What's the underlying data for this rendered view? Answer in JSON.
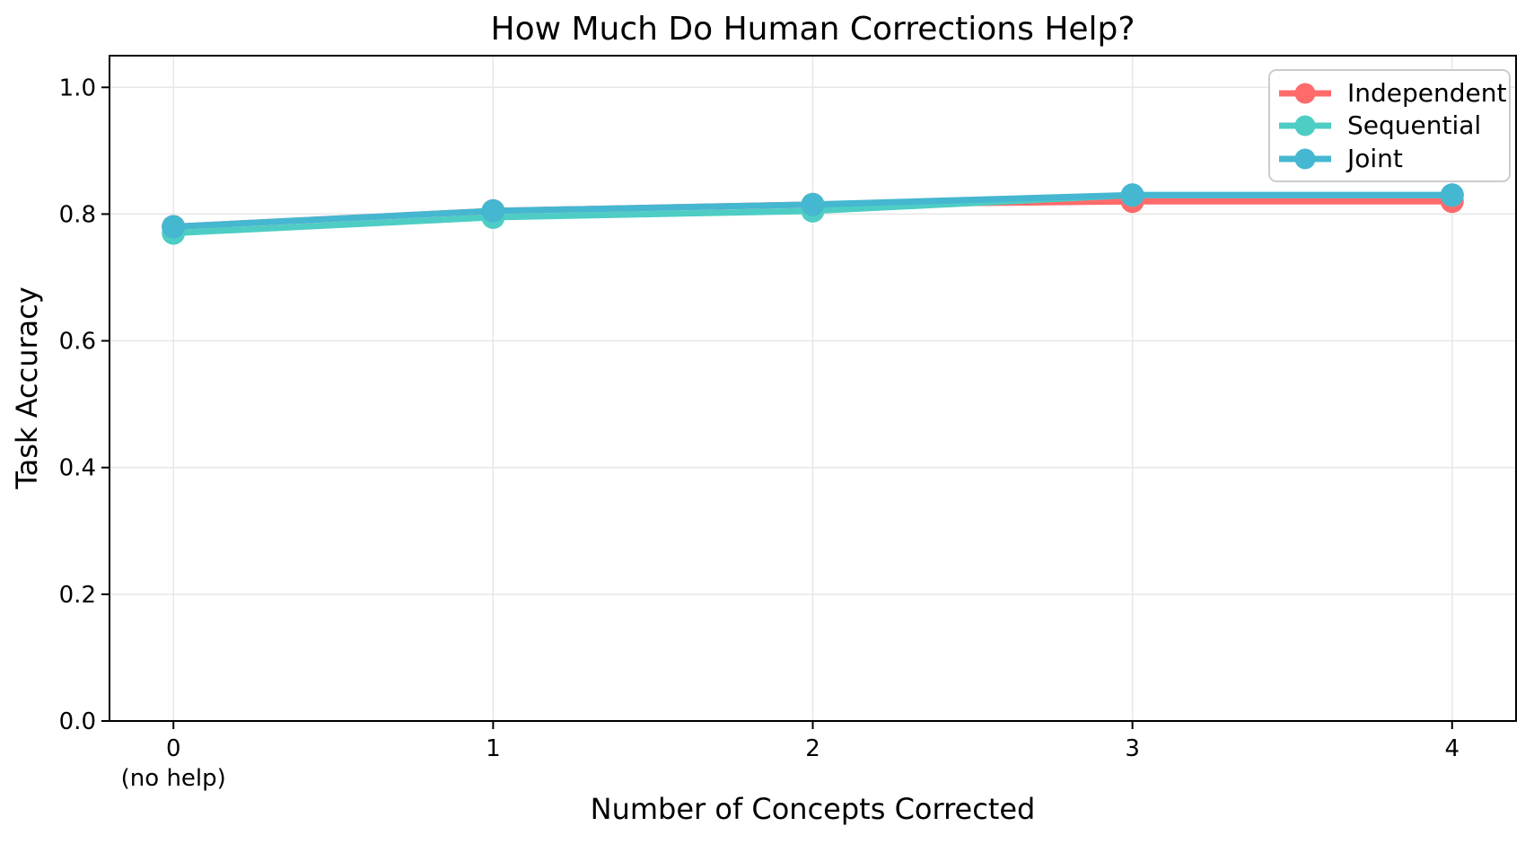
{
  "chart_data": {
    "type": "line",
    "title": "How Much Do Human Corrections Help?",
    "xlabel": "Number of Concepts Corrected",
    "ylabel": "Task Accuracy",
    "x": [
      0,
      1,
      2,
      3,
      4
    ],
    "x_tick_labels": [
      "0",
      "1",
      "2",
      "3",
      "4"
    ],
    "x_tick_sublabels": [
      "(no help)",
      "",
      "",
      "",
      ""
    ],
    "y_ticks": [
      0.0,
      0.2,
      0.4,
      0.6,
      0.8,
      1.0
    ],
    "y_tick_labels": [
      "0.0",
      "0.2",
      "0.4",
      "0.6",
      "0.8",
      "1.0"
    ],
    "xlim": [
      -0.2,
      4.2
    ],
    "ylim": [
      0,
      1.05
    ],
    "grid": true,
    "grid_color": "#e7e7e7",
    "frame_color": "#000000",
    "legend_position": "upper right",
    "series": [
      {
        "name": "Independent",
        "color": "#FF6B6B",
        "values": [
          0.78,
          0.805,
          0.815,
          0.82,
          0.82
        ]
      },
      {
        "name": "Sequential",
        "color": "#4ECDC4",
        "values": [
          0.77,
          0.795,
          0.805,
          0.83,
          0.83
        ]
      },
      {
        "name": "Joint",
        "color": "#45B7D1",
        "values": [
          0.78,
          0.805,
          0.815,
          0.83,
          0.83
        ]
      }
    ]
  }
}
